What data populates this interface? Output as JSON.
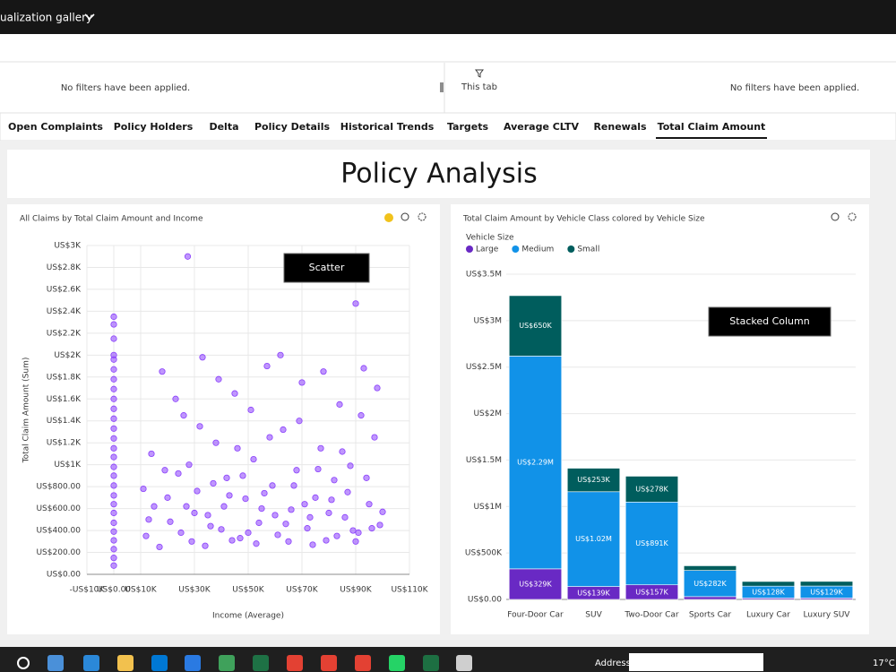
{
  "app": {
    "gallery": "ualization gallery",
    "filters_left": "No filters have been applied.",
    "this_tab": "This tab",
    "filters_right": "No filters have been applied.",
    "tabs": [
      "Open Complaints",
      "Policy Holders",
      "Delta",
      "Policy Details",
      "Historical Trends",
      "Targets",
      "Average CLTV",
      "Renewals",
      "Total Claim Amount"
    ],
    "active_tab": 8,
    "page_title": "Policy Analysis",
    "address": "Address",
    "weather": "17°C"
  },
  "chart_data": [
    {
      "type": "scatter",
      "title": "All Claims by Total Claim Amount and Income",
      "x_label": "Income (Average)",
      "y_label": "Total Claim Amount (Sum)",
      "annotation": "Scatter",
      "color": "#8a3ffc",
      "grid": true,
      "xlim": [
        -10000,
        110000
      ],
      "xticks": [
        {
          "value": -10000,
          "label": "-US$10K"
        },
        {
          "value": 0,
          "label": "US$0.00"
        },
        {
          "value": 10000,
          "label": "US$10K"
        },
        {
          "value": 30000,
          "label": "US$30K"
        },
        {
          "value": 50000,
          "label": "US$50K"
        },
        {
          "value": 70000,
          "label": "US$70K"
        },
        {
          "value": 90000,
          "label": "US$90K"
        },
        {
          "value": 110000,
          "label": "US$110K"
        }
      ],
      "ylim": [
        0,
        3000
      ],
      "yticks": [
        {
          "value": 0,
          "label": "US$0.00"
        },
        {
          "value": 200,
          "label": "US$200.00"
        },
        {
          "value": 400,
          "label": "US$400.00"
        },
        {
          "value": 600,
          "label": "US$600.00"
        },
        {
          "value": 800,
          "label": "US$800.00"
        },
        {
          "value": 1000,
          "label": "US$1K"
        },
        {
          "value": 1200,
          "label": "US$1.2K"
        },
        {
          "value": 1400,
          "label": "US$1.4K"
        },
        {
          "value": 1600,
          "label": "US$1.6K"
        },
        {
          "value": 1800,
          "label": "US$1.8K"
        },
        {
          "value": 2000,
          "label": "US$2K"
        },
        {
          "value": 2200,
          "label": "US$2.2K"
        },
        {
          "value": 2400,
          "label": "US$2.4K"
        },
        {
          "value": 2600,
          "label": "US$2.6K"
        },
        {
          "value": 2800,
          "label": "US$2.8K"
        },
        {
          "value": 3000,
          "label": "US$3K"
        }
      ],
      "x": [
        0,
        0,
        0,
        0,
        0,
        0,
        0,
        0,
        0,
        0,
        0,
        0,
        0,
        0,
        0,
        0,
        0,
        0,
        0,
        0,
        0,
        0,
        0,
        0,
        0,
        0,
        0,
        27500,
        90000,
        12000,
        15000,
        18000,
        21000,
        24000,
        26000,
        29000,
        31000,
        33000,
        35000,
        38000,
        40000,
        42000,
        45000,
        47000,
        49000,
        52000,
        54000,
        57000,
        59000,
        61000,
        63000,
        66000,
        68000,
        70000,
        72000,
        75000,
        77000,
        79000,
        82000,
        84000,
        86000,
        88000,
        91000,
        93000,
        95000,
        97000,
        99000,
        11000,
        14000,
        17000,
        20000,
        23000,
        25000,
        28000,
        30000,
        32000,
        34000,
        37000,
        39000,
        41000,
        44000,
        46000,
        48000,
        51000,
        53000,
        56000,
        58000,
        60000,
        62000,
        65000,
        67000,
        69000,
        71000,
        74000,
        76000,
        78000,
        80000,
        83000,
        85000,
        87000,
        90000,
        92000,
        94000,
        96000,
        98000,
        13000,
        19000,
        27000,
        36000,
        43000,
        50000,
        55000,
        64000,
        73000,
        81000,
        89000,
        100000
      ],
      "values": [
        80,
        150,
        230,
        310,
        390,
        470,
        560,
        640,
        720,
        810,
        900,
        980,
        1070,
        1150,
        1240,
        1330,
        1420,
        1510,
        1600,
        1690,
        1780,
        1870,
        1960,
        2000,
        2150,
        2280,
        2350,
        2900,
        2470,
        350,
        620,
        1850,
        480,
        920,
        1450,
        300,
        760,
        1980,
        540,
        1200,
        410,
        880,
        1650,
        330,
        690,
        1050,
        470,
        1900,
        810,
        360,
        1320,
        590,
        950,
        1750,
        420,
        700,
        1150,
        310,
        860,
        1550,
        520,
        990,
        380,
        1880,
        640,
        1250,
        450,
        780,
        1100,
        250,
        700,
        1600,
        380,
        1000,
        560,
        1350,
        260,
        830,
        1780,
        620,
        310,
        1150,
        900,
        1500,
        280,
        740,
        1250,
        540,
        2000,
        300,
        810,
        1400,
        640,
        270,
        960,
        1850,
        560,
        350,
        1120,
        750,
        300,
        1450,
        880,
        420,
        1700,
        500,
        950,
        620,
        440,
        720,
        380,
        600,
        460,
        520,
        680,
        400,
        570
      ]
    },
    {
      "type": "stacked_bar",
      "title": "Total Claim Amount by Vehicle Class colored by Vehicle Size",
      "legend_title": "Vehicle Size",
      "annotation": "Stacked Column",
      "grid": true,
      "categories": [
        "Four-Door Car",
        "SUV",
        "Two-Door Car",
        "Sports Car",
        "Luxury Car",
        "Luxury SUV"
      ],
      "ylim": [
        0,
        3500000
      ],
      "yticks": [
        {
          "value": 0,
          "label": "US$0.00"
        },
        {
          "value": 500000,
          "label": "US$500K"
        },
        {
          "value": 1000000,
          "label": "US$1M"
        },
        {
          "value": 1500000,
          "label": "US$1.5M"
        },
        {
          "value": 2000000,
          "label": "US$2M"
        },
        {
          "value": 2500000,
          "label": "US$2.5M"
        },
        {
          "value": 3000000,
          "label": "US$3M"
        },
        {
          "value": 3500000,
          "label": "US$3.5M"
        }
      ],
      "series": [
        {
          "name": "Large",
          "color": "#6929c4",
          "values": [
            329000,
            139000,
            157000,
            30000,
            15000,
            15000
          ],
          "value_labels": [
            "US$329K",
            "US$139K",
            "US$157K",
            null,
            null,
            null
          ]
        },
        {
          "name": "Medium",
          "color": "#1192e8",
          "values": [
            2290000,
            1020000,
            891000,
            282000,
            128000,
            129000
          ],
          "value_labels": [
            "US$2.29M",
            "US$1.02M",
            "US$891K",
            "US$282K",
            "US$128K",
            "US$129K"
          ]
        },
        {
          "name": "Small",
          "color": "#005d5d",
          "values": [
            650000,
            253000,
            278000,
            50000,
            50000,
            50000
          ],
          "value_labels": [
            "US$650K",
            "US$253K",
            "US$278K",
            null,
            null,
            null
          ]
        }
      ]
    }
  ]
}
